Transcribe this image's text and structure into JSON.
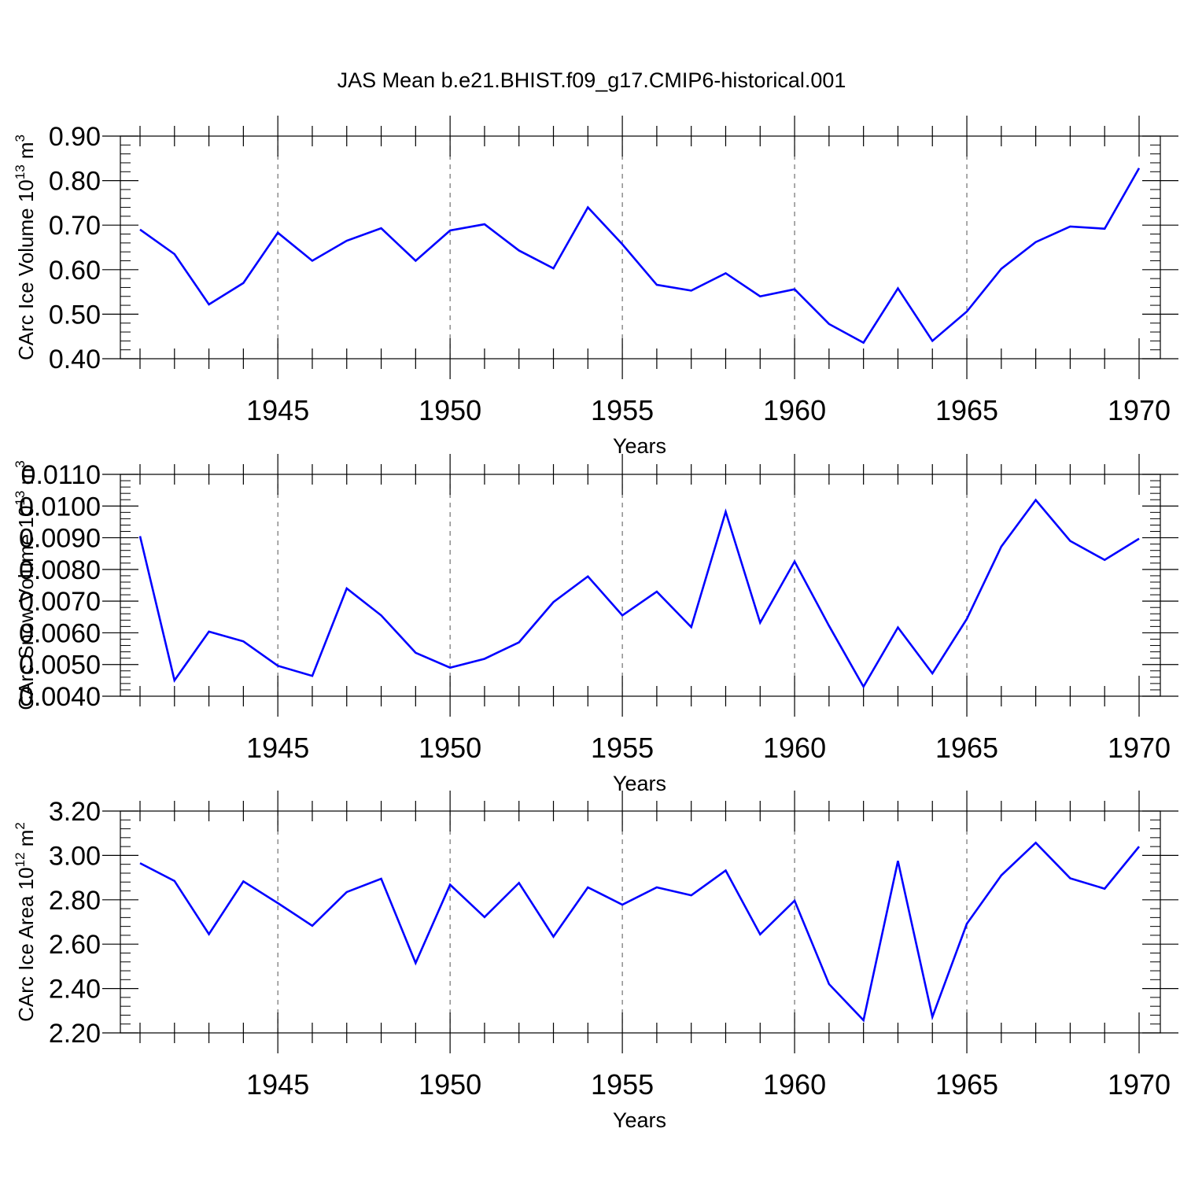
{
  "title": "JAS Mean b.e21.BHIST.f09_g17.CMIP6-historical.001",
  "colors": {
    "line": "#0000ff",
    "axis": "#000000",
    "grid": "#555555"
  },
  "chart_data": [
    {
      "type": "line",
      "title": "JAS Mean b.e21.BHIST.f09_g17.CMIP6-historical.001",
      "xlabel": "Years",
      "ylabel": {
        "text": "CArc Ice Volume 10",
        "exp": "13",
        "unit": " m",
        "unit_exp": "3"
      },
      "xlim": [
        1941,
        1970
      ],
      "ylim": [
        0.4,
        0.9
      ],
      "xticks": [
        "1945",
        "1950",
        "1955",
        "1960",
        "1965",
        "1970"
      ],
      "yticks": [
        "0.40",
        "0.50",
        "0.60",
        "0.70",
        "0.80",
        "0.90"
      ],
      "x": [
        1941,
        1942,
        1943,
        1944,
        1945,
        1946,
        1947,
        1948,
        1949,
        1950,
        1951,
        1952,
        1953,
        1954,
        1955,
        1956,
        1957,
        1958,
        1959,
        1960,
        1961,
        1962,
        1963,
        1964,
        1965,
        1966,
        1967,
        1968,
        1969,
        1970
      ],
      "series": [
        {
          "name": "CArc Ice Volume",
          "values": [
            0.69,
            0.635,
            0.522,
            0.57,
            0.683,
            0.62,
            0.665,
            0.693,
            0.62,
            0.688,
            0.702,
            0.643,
            0.603,
            0.74,
            0.657,
            0.566,
            0.553,
            0.592,
            0.54,
            0.556,
            0.478,
            0.436,
            0.558,
            0.44,
            0.506,
            0.602,
            0.662,
            0.697,
            0.692,
            0.828
          ]
        }
      ]
    },
    {
      "type": "line",
      "xlabel": "Years",
      "ylabel": {
        "text": "CArc Snow Volume 10",
        "exp": "13",
        "unit": " m",
        "unit_exp": "3"
      },
      "xlim": [
        1941,
        1970
      ],
      "ylim": [
        0.004,
        0.011
      ],
      "xticks": [
        "1945",
        "1950",
        "1955",
        "1960",
        "1965",
        "1970"
      ],
      "yticks": [
        "0.0040",
        "0.0050",
        "0.0060",
        "0.0070",
        "0.0080",
        "0.0090",
        "0.0100",
        "0.0110"
      ],
      "x": [
        1941,
        1942,
        1943,
        1944,
        1945,
        1946,
        1947,
        1948,
        1949,
        1950,
        1951,
        1952,
        1953,
        1954,
        1955,
        1956,
        1957,
        1958,
        1959,
        1960,
        1961,
        1962,
        1963,
        1964,
        1965,
        1966,
        1967,
        1968,
        1969,
        1970
      ],
      "series": [
        {
          "name": "CArc Snow Volume",
          "values": [
            0.00905,
            0.0045,
            0.00604,
            0.00573,
            0.00496,
            0.00464,
            0.0074,
            0.00655,
            0.00537,
            0.0049,
            0.00518,
            0.0057,
            0.00697,
            0.00778,
            0.00655,
            0.0073,
            0.00618,
            0.00982,
            0.00632,
            0.00825,
            0.00622,
            0.0043,
            0.00617,
            0.00472,
            0.00644,
            0.00872,
            0.01019,
            0.0089,
            0.0083,
            0.00897
          ]
        }
      ]
    },
    {
      "type": "line",
      "xlabel": "Years",
      "ylabel": {
        "text": "CArc Ice Area 10",
        "exp": "12",
        "unit": " m",
        "unit_exp": "2"
      },
      "xlim": [
        1941,
        1970
      ],
      "ylim": [
        2.2,
        3.2
      ],
      "xticks": [
        "1945",
        "1950",
        "1955",
        "1960",
        "1965",
        "1970"
      ],
      "yticks": [
        "2.20",
        "2.40",
        "2.60",
        "2.80",
        "3.00",
        "3.20"
      ],
      "x": [
        1941,
        1942,
        1943,
        1944,
        1945,
        1946,
        1947,
        1948,
        1949,
        1950,
        1951,
        1952,
        1953,
        1954,
        1955,
        1956,
        1957,
        1958,
        1959,
        1960,
        1961,
        1962,
        1963,
        1964,
        1965,
        1966,
        1967,
        1968,
        1969,
        1970
      ],
      "series": [
        {
          "name": "CArc Ice Area",
          "values": [
            2.965,
            2.885,
            2.645,
            2.883,
            2.785,
            2.683,
            2.835,
            2.895,
            2.515,
            2.868,
            2.722,
            2.876,
            2.634,
            2.856,
            2.778,
            2.856,
            2.82,
            2.932,
            2.644,
            2.796,
            2.42,
            2.257,
            2.975,
            2.272,
            2.692,
            2.91,
            3.057,
            2.897,
            2.85,
            3.04
          ]
        }
      ]
    }
  ]
}
